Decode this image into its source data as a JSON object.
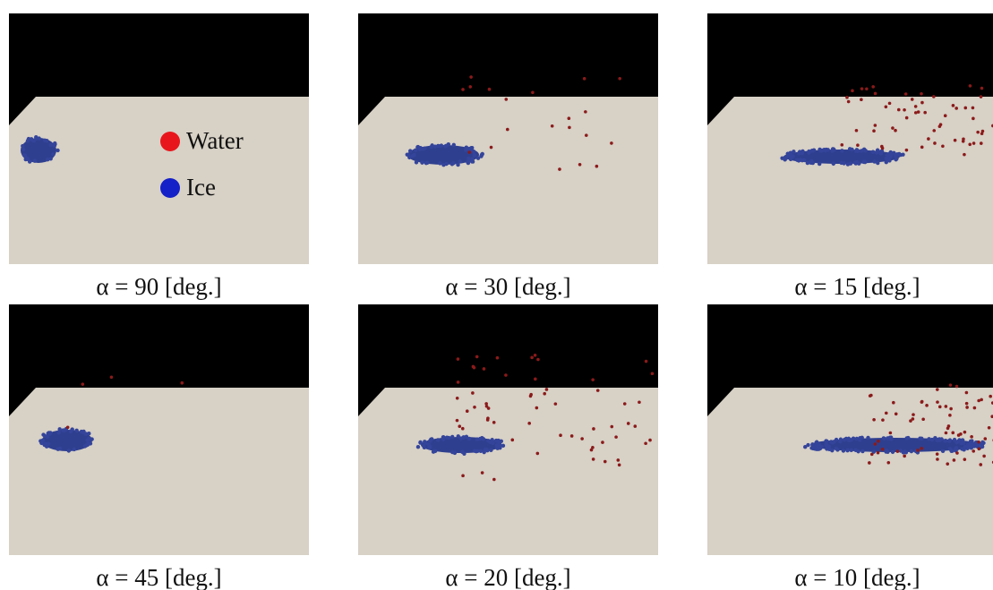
{
  "panels": [
    {
      "caption": "α = 90 [deg.]",
      "legend": [
        "Water",
        "Ice"
      ]
    },
    {
      "caption": "α = 30 [deg.]"
    },
    {
      "caption": "α = 15 [deg.]"
    },
    {
      "caption": "α = 45 [deg.]"
    },
    {
      "caption": "α = 20 [deg.]"
    },
    {
      "caption": "α = 10 [deg.]"
    }
  ]
}
